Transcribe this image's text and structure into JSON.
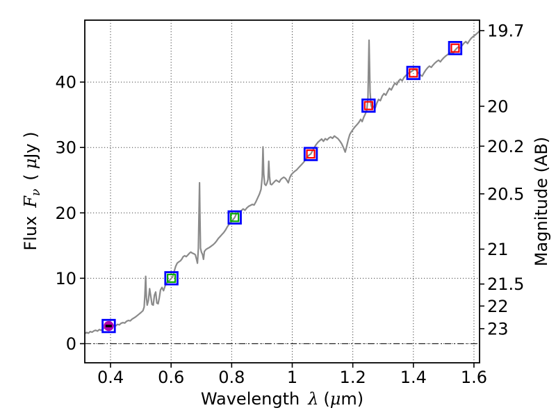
{
  "chart_data": {
    "type": "line+scatter",
    "title": "",
    "xlabel": "Wavelength λ (μm)",
    "xlabel_parts": {
      "word": "Wavelength",
      "lambda": "λ",
      "open": "(",
      "mu": "μ",
      "close": "m)"
    },
    "ylabel_left": "Flux Fν ( μJy )",
    "ylabel_left_parts": {
      "word": "Flux",
      "f": "F",
      "nu": "ν",
      "open": "(",
      "mu": "μ",
      "close": "Jy )"
    },
    "ylabel_right": "Magnitude (AB)",
    "xlim": [
      0.315,
      1.6185
    ],
    "ylim": [
      -2.925,
      49.47
    ],
    "grid": "dotted",
    "zero_line_style": "dash-dot",
    "x_ticks": [
      0.4,
      0.6,
      0.8,
      1.0,
      1.2,
      1.4,
      1.6
    ],
    "x_tick_labels": [
      "0.4",
      "0.6",
      "0.8",
      "1",
      "1.2",
      "1.4",
      "1.6"
    ],
    "y_ticks_left": [
      0,
      10,
      20,
      30,
      40
    ],
    "y_tick_labels_left": [
      "0",
      "10",
      "20",
      "30",
      "40"
    ],
    "y_ticks_right": [
      19.7,
      20,
      20.2,
      20.5,
      21,
      21.5,
      22,
      23
    ],
    "y_tick_labels_right": [
      "19.7",
      "20",
      "20.2",
      "20.5",
      "21",
      "21.5",
      "22",
      "23"
    ],
    "ab_zero_point_uJy": 23.9,
    "colors": {
      "spectrum": "#8a8a8a",
      "outer_square": "#0000ff",
      "inner_green": "#00a800",
      "inner_red": "#ff0000",
      "magenta_circle": "#b000b0",
      "dash": "#000000",
      "grid": "#444444",
      "axis": "#000000"
    },
    "photometry": [
      {
        "wavelength_um": 0.394,
        "flux_uJy": 2.7,
        "outer": "blue-square",
        "inner": "magenta-circle-black-dash"
      },
      {
        "wavelength_um": 0.601,
        "flux_uJy": 10.0,
        "outer": "blue-square",
        "inner": "green-square"
      },
      {
        "wavelength_um": 0.81,
        "flux_uJy": 19.3,
        "outer": "blue-square",
        "inner": "green-square"
      },
      {
        "wavelength_um": 1.061,
        "flux_uJy": 29.0,
        "outer": "blue-square",
        "inner": "red-square"
      },
      {
        "wavelength_um": 1.252,
        "flux_uJy": 36.4,
        "outer": "blue-square",
        "inner": "red-square"
      },
      {
        "wavelength_um": 1.4,
        "flux_uJy": 41.4,
        "outer": "blue-square",
        "inner": "red-square"
      },
      {
        "wavelength_um": 1.538,
        "flux_uJy": 45.2,
        "outer": "blue-square",
        "inner": "red-square"
      }
    ],
    "spectrum_points": [
      [
        0.315,
        1.55
      ],
      [
        0.321,
        1.72
      ],
      [
        0.327,
        1.6
      ],
      [
        0.333,
        1.85
      ],
      [
        0.339,
        1.75
      ],
      [
        0.345,
        1.95
      ],
      [
        0.351,
        2.05
      ],
      [
        0.357,
        1.92
      ],
      [
        0.363,
        2.15
      ],
      [
        0.369,
        2.05
      ],
      [
        0.375,
        2.28
      ],
      [
        0.381,
        2.42
      ],
      [
        0.387,
        2.32
      ],
      [
        0.393,
        2.55
      ],
      [
        0.399,
        2.62
      ],
      [
        0.405,
        2.56
      ],
      [
        0.411,
        2.78
      ],
      [
        0.417,
        2.72
      ],
      [
        0.423,
        2.95
      ],
      [
        0.429,
        2.88
      ],
      [
        0.435,
        3.12
      ],
      [
        0.441,
        3.22
      ],
      [
        0.447,
        3.15
      ],
      [
        0.453,
        3.42
      ],
      [
        0.459,
        3.55
      ],
      [
        0.465,
        3.48
      ],
      [
        0.471,
        3.75
      ],
      [
        0.477,
        3.92
      ],
      [
        0.483,
        4.1
      ],
      [
        0.489,
        4.32
      ],
      [
        0.495,
        4.55
      ],
      [
        0.501,
        4.78
      ],
      [
        0.507,
        5.05
      ],
      [
        0.511,
        5.6
      ],
      [
        0.5135,
        7.5
      ],
      [
        0.516,
        10.3
      ],
      [
        0.5185,
        7.0
      ],
      [
        0.521,
        5.9
      ],
      [
        0.525,
        6.6
      ],
      [
        0.529,
        8.4
      ],
      [
        0.533,
        7.2
      ],
      [
        0.537,
        6.0
      ],
      [
        0.541,
        5.9
      ],
      [
        0.545,
        7.4
      ],
      [
        0.549,
        7.9
      ],
      [
        0.553,
        6.2
      ],
      [
        0.557,
        6.1
      ],
      [
        0.561,
        7.0
      ],
      [
        0.565,
        8.2
      ],
      [
        0.57,
        8.6
      ],
      [
        0.575,
        8.1
      ],
      [
        0.58,
        8.8
      ],
      [
        0.585,
        9.3
      ],
      [
        0.59,
        9.5
      ],
      [
        0.595,
        9.7
      ],
      [
        0.6,
        9.95
      ],
      [
        0.605,
        10.2
      ],
      [
        0.61,
        11.0
      ],
      [
        0.615,
        11.8
      ],
      [
        0.62,
        12.3
      ],
      [
        0.625,
        12.5
      ],
      [
        0.63,
        12.65
      ],
      [
        0.635,
        12.9
      ],
      [
        0.64,
        13.3
      ],
      [
        0.645,
        13.45
      ],
      [
        0.65,
        13.3
      ],
      [
        0.655,
        13.55
      ],
      [
        0.66,
        13.8
      ],
      [
        0.665,
        14.0
      ],
      [
        0.67,
        13.85
      ],
      [
        0.675,
        13.75
      ],
      [
        0.68,
        13.6
      ],
      [
        0.684,
        12.9
      ],
      [
        0.687,
        12.3
      ],
      [
        0.69,
        14.5
      ],
      [
        0.6925,
        21.0
      ],
      [
        0.694,
        24.6
      ],
      [
        0.6955,
        19.0
      ],
      [
        0.697,
        14.6
      ],
      [
        0.7,
        14.0
      ],
      [
        0.704,
        13.6
      ],
      [
        0.707,
        12.9
      ],
      [
        0.71,
        14.1
      ],
      [
        0.715,
        14.4
      ],
      [
        0.72,
        14.55
      ],
      [
        0.726,
        14.7
      ],
      [
        0.732,
        14.9
      ],
      [
        0.738,
        15.1
      ],
      [
        0.744,
        15.35
      ],
      [
        0.75,
        15.7
      ],
      [
        0.756,
        16.1
      ],
      [
        0.762,
        16.4
      ],
      [
        0.768,
        16.7
      ],
      [
        0.774,
        17.0
      ],
      [
        0.78,
        17.4
      ],
      [
        0.786,
        17.9
      ],
      [
        0.792,
        18.3
      ],
      [
        0.798,
        18.6
      ],
      [
        0.804,
        18.95
      ],
      [
        0.81,
        19.3
      ],
      [
        0.815,
        19.8
      ],
      [
        0.82,
        20.05
      ],
      [
        0.826,
        20.2
      ],
      [
        0.832,
        20.35
      ],
      [
        0.838,
        20.6
      ],
      [
        0.844,
        20.4
      ],
      [
        0.85,
        20.75
      ],
      [
        0.856,
        21.0
      ],
      [
        0.862,
        21.15
      ],
      [
        0.868,
        21.3
      ],
      [
        0.874,
        21.2
      ],
      [
        0.88,
        21.7
      ],
      [
        0.886,
        22.3
      ],
      [
        0.892,
        22.9
      ],
      [
        0.897,
        23.6
      ],
      [
        0.901,
        25.5
      ],
      [
        0.9035,
        30.1
      ],
      [
        0.906,
        26.0
      ],
      [
        0.909,
        24.4
      ],
      [
        0.913,
        24.2
      ],
      [
        0.917,
        24.6
      ],
      [
        0.92,
        25.1
      ],
      [
        0.9225,
        27.9
      ],
      [
        0.925,
        25.6
      ],
      [
        0.928,
        24.4
      ],
      [
        0.932,
        24.3
      ],
      [
        0.937,
        24.55
      ],
      [
        0.942,
        24.8
      ],
      [
        0.947,
        25.0
      ],
      [
        0.952,
        24.85
      ],
      [
        0.957,
        24.7
      ],
      [
        0.962,
        25.1
      ],
      [
        0.967,
        25.3
      ],
      [
        0.972,
        25.45
      ],
      [
        0.977,
        25.3
      ],
      [
        0.982,
        25.0
      ],
      [
        0.987,
        24.6
      ],
      [
        0.992,
        25.4
      ],
      [
        0.997,
        25.85
      ],
      [
        1.002,
        26.1
      ],
      [
        1.008,
        26.35
      ],
      [
        1.014,
        26.55
      ],
      [
        1.02,
        26.85
      ],
      [
        1.026,
        27.15
      ],
      [
        1.032,
        27.45
      ],
      [
        1.038,
        27.75
      ],
      [
        1.044,
        28.15
      ],
      [
        1.05,
        28.55
      ],
      [
        1.056,
        28.85
      ],
      [
        1.061,
        29.0
      ],
      [
        1.067,
        29.5
      ],
      [
        1.073,
        30.0
      ],
      [
        1.079,
        30.45
      ],
      [
        1.085,
        30.8
      ],
      [
        1.091,
        31.05
      ],
      [
        1.097,
        31.3
      ],
      [
        1.103,
        30.95
      ],
      [
        1.109,
        31.35
      ],
      [
        1.115,
        31.15
      ],
      [
        1.121,
        31.45
      ],
      [
        1.127,
        31.6
      ],
      [
        1.133,
        31.4
      ],
      [
        1.139,
        31.75
      ],
      [
        1.145,
        31.55
      ],
      [
        1.151,
        31.35
      ],
      [
        1.157,
        31.0
      ],
      [
        1.163,
        30.6
      ],
      [
        1.169,
        30.0
      ],
      [
        1.175,
        29.3
      ],
      [
        1.18,
        30.2
      ],
      [
        1.185,
        31.2
      ],
      [
        1.19,
        32.0
      ],
      [
        1.196,
        32.45
      ],
      [
        1.202,
        32.85
      ],
      [
        1.208,
        33.2
      ],
      [
        1.214,
        33.5
      ],
      [
        1.22,
        33.85
      ],
      [
        1.226,
        34.3
      ],
      [
        1.231,
        33.95
      ],
      [
        1.236,
        34.6
      ],
      [
        1.241,
        35.1
      ],
      [
        1.246,
        35.7
      ],
      [
        1.25,
        37.5
      ],
      [
        1.2535,
        46.4
      ],
      [
        1.257,
        38.5
      ],
      [
        1.26,
        36.5
      ],
      [
        1.264,
        35.9
      ],
      [
        1.269,
        36.3
      ],
      [
        1.274,
        36.05
      ],
      [
        1.279,
        36.75
      ],
      [
        1.285,
        37.35
      ],
      [
        1.291,
        37.15
      ],
      [
        1.297,
        37.85
      ],
      [
        1.303,
        38.25
      ],
      [
        1.309,
        38.0
      ],
      [
        1.315,
        38.55
      ],
      [
        1.321,
        39.05
      ],
      [
        1.327,
        38.8
      ],
      [
        1.333,
        39.35
      ],
      [
        1.339,
        39.85
      ],
      [
        1.345,
        39.6
      ],
      [
        1.351,
        40.15
      ],
      [
        1.357,
        40.45
      ],
      [
        1.363,
        40.2
      ],
      [
        1.369,
        40.7
      ],
      [
        1.375,
        41.0
      ],
      [
        1.381,
        41.25
      ],
      [
        1.387,
        41.45
      ],
      [
        1.393,
        41.6
      ],
      [
        1.399,
        41.8
      ],
      [
        1.405,
        42.0
      ],
      [
        1.411,
        41.7
      ],
      [
        1.417,
        41.35
      ],
      [
        1.423,
        41.1
      ],
      [
        1.429,
        40.9
      ],
      [
        1.435,
        41.4
      ],
      [
        1.441,
        41.85
      ],
      [
        1.447,
        42.2
      ],
      [
        1.453,
        42.45
      ],
      [
        1.459,
        42.25
      ],
      [
        1.465,
        42.6
      ],
      [
        1.471,
        42.9
      ],
      [
        1.477,
        43.15
      ],
      [
        1.483,
        43.35
      ],
      [
        1.489,
        43.1
      ],
      [
        1.495,
        43.45
      ],
      [
        1.501,
        43.75
      ],
      [
        1.507,
        44.0
      ],
      [
        1.513,
        44.2
      ],
      [
        1.519,
        44.4
      ],
      [
        1.525,
        44.55
      ],
      [
        1.531,
        44.35
      ],
      [
        1.537,
        44.85
      ],
      [
        1.543,
        45.15
      ],
      [
        1.549,
        45.4
      ],
      [
        1.555,
        45.2
      ],
      [
        1.561,
        45.6
      ],
      [
        1.567,
        45.95
      ],
      [
        1.573,
        46.2
      ],
      [
        1.579,
        45.9
      ],
      [
        1.585,
        46.35
      ],
      [
        1.591,
        46.7
      ],
      [
        1.597,
        46.95
      ],
      [
        1.603,
        47.15
      ],
      [
        1.609,
        47.4
      ],
      [
        1.615,
        47.65
      ],
      [
        1.618,
        47.8
      ]
    ]
  }
}
